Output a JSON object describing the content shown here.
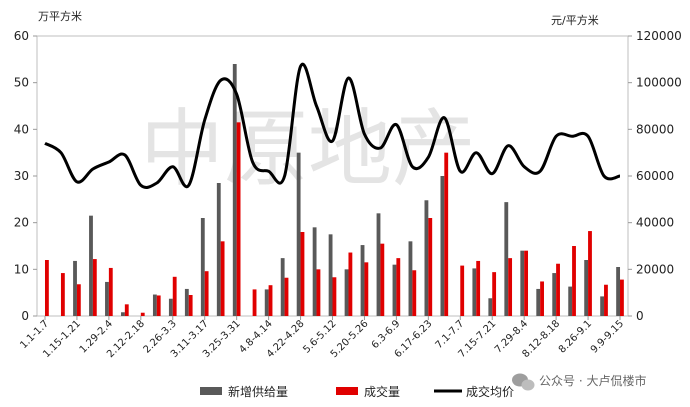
{
  "chart_data": {
    "type": "bar+line",
    "left_axis": {
      "unit": "万平方米",
      "ylim": [
        0,
        60
      ],
      "ticks": [
        "0",
        "10",
        "20",
        "30",
        "40",
        "50",
        "60"
      ]
    },
    "right_axis": {
      "unit": "元/平方米",
      "ylim": [
        0,
        120000
      ],
      "ticks": [
        "0",
        "20000",
        "40000",
        "60000",
        "80000",
        "100000",
        "120000"
      ]
    },
    "x_tick_labels": [
      "1.1-1.7",
      "1.15-1.21",
      "1.29-2.4",
      "2.12-2.18",
      "2.26-3.3",
      "3.11-3.17",
      "3.25-3.31",
      "4.8-4.14",
      "4.22-4.28",
      "5.6-5.12",
      "5.20-5.26",
      "6.3-6.9",
      "6.17-6.23",
      "7.1-7.7",
      "7.15-7.21",
      "7.29-8.4",
      "8.12-8.18",
      "8.26-9.1",
      "9.9-9.15"
    ],
    "series": [
      {
        "name": "新增供给量",
        "type": "bar",
        "axis": "left",
        "color": "#595959",
        "values": [
          0,
          0,
          11.8,
          21.5,
          7.3,
          0.8,
          0,
          4.6,
          3.7,
          5.8,
          21,
          28.5,
          54,
          0,
          5.7,
          12.4,
          35,
          19,
          17.5,
          10,
          15.2,
          22,
          11,
          16,
          24.8,
          30,
          0,
          10.2,
          3.8,
          24.4,
          14,
          5.8,
          9.2,
          6.3,
          12,
          4.2,
          10.5
        ]
      },
      {
        "name": "成交量",
        "type": "bar",
        "axis": "left",
        "color": "#e00000",
        "values": [
          12,
          9.2,
          6.8,
          12.2,
          10.3,
          2.5,
          0.7,
          4.4,
          8.4,
          4.5,
          9.6,
          16,
          41.5,
          5.7,
          6.6,
          8.2,
          18,
          10,
          8.3,
          13.6,
          11.5,
          15.5,
          12.4,
          9.8,
          21,
          35,
          10.8,
          11.8,
          9.4,
          12.4,
          14,
          7.4,
          11.2,
          15,
          18.2,
          6.7,
          7.8
        ]
      },
      {
        "name": "成交均价",
        "type": "line",
        "axis": "right",
        "color": "#000000",
        "values": [
          74000,
          70000,
          57500,
          63000,
          66000,
          69000,
          56000,
          57000,
          64000,
          56000,
          84000,
          101000,
          95000,
          66000,
          62000,
          60000,
          107000,
          90000,
          75000,
          102000,
          78000,
          72000,
          82000,
          64000,
          68000,
          85000,
          62000,
          70000,
          61000,
          73000,
          64000,
          62000,
          77000,
          77000,
          77000,
          60000,
          60000
        ]
      }
    ]
  },
  "watermark": "中原地产",
  "footer": {
    "icon": "wechat-icon",
    "text": "公众号 · 大卢侃楼市"
  }
}
